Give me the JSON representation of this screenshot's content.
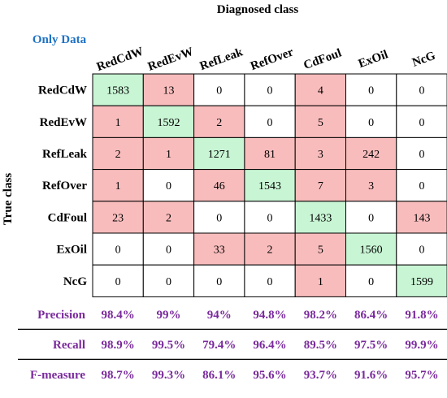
{
  "chart_data": {
    "type": "heatmap",
    "title": "Diagnosed class",
    "corner_label": "Only Data",
    "ylabel": "True class",
    "columns": [
      "RedCdW",
      "RedEvW",
      "RefLeak",
      "RefOver",
      "CdFoul",
      "ExOil",
      "NcG"
    ],
    "rows": [
      "RedCdW",
      "RedEvW",
      "RefLeak",
      "RefOver",
      "CdFoul",
      "ExOil",
      "NcG"
    ],
    "matrix": [
      [
        1583,
        13,
        0,
        0,
        4,
        0,
        0
      ],
      [
        1,
        1592,
        2,
        0,
        5,
        0,
        0
      ],
      [
        2,
        1,
        1271,
        81,
        3,
        242,
        0
      ],
      [
        1,
        0,
        46,
        1543,
        7,
        3,
        0
      ],
      [
        23,
        2,
        0,
        0,
        1433,
        0,
        143
      ],
      [
        0,
        0,
        33,
        2,
        5,
        1560,
        0
      ],
      [
        0,
        0,
        0,
        0,
        1,
        0,
        1599
      ]
    ],
    "metrics": [
      {
        "name": "Precision",
        "values": [
          "98.4%",
          "99%",
          "94%",
          "94.8%",
          "98.2%",
          "86.4%",
          "91.8%"
        ]
      },
      {
        "name": "Recall",
        "values": [
          "98.9%",
          "99.5%",
          "79.4%",
          "96.4%",
          "89.5%",
          "97.5%",
          "99.9%"
        ]
      },
      {
        "name": "F-measure",
        "values": [
          "98.7%",
          "99.3%",
          "86.1%",
          "95.6%",
          "93.7%",
          "91.6%",
          "95.7%"
        ]
      }
    ],
    "colors": {
      "diagonal": "#c8f5d4",
      "misclassified": "#f9bcbc",
      "zero": "#ffffff",
      "corner_label": "#1f72c4",
      "metric_text": "#7a2a9c",
      "grid": "#000000"
    }
  }
}
